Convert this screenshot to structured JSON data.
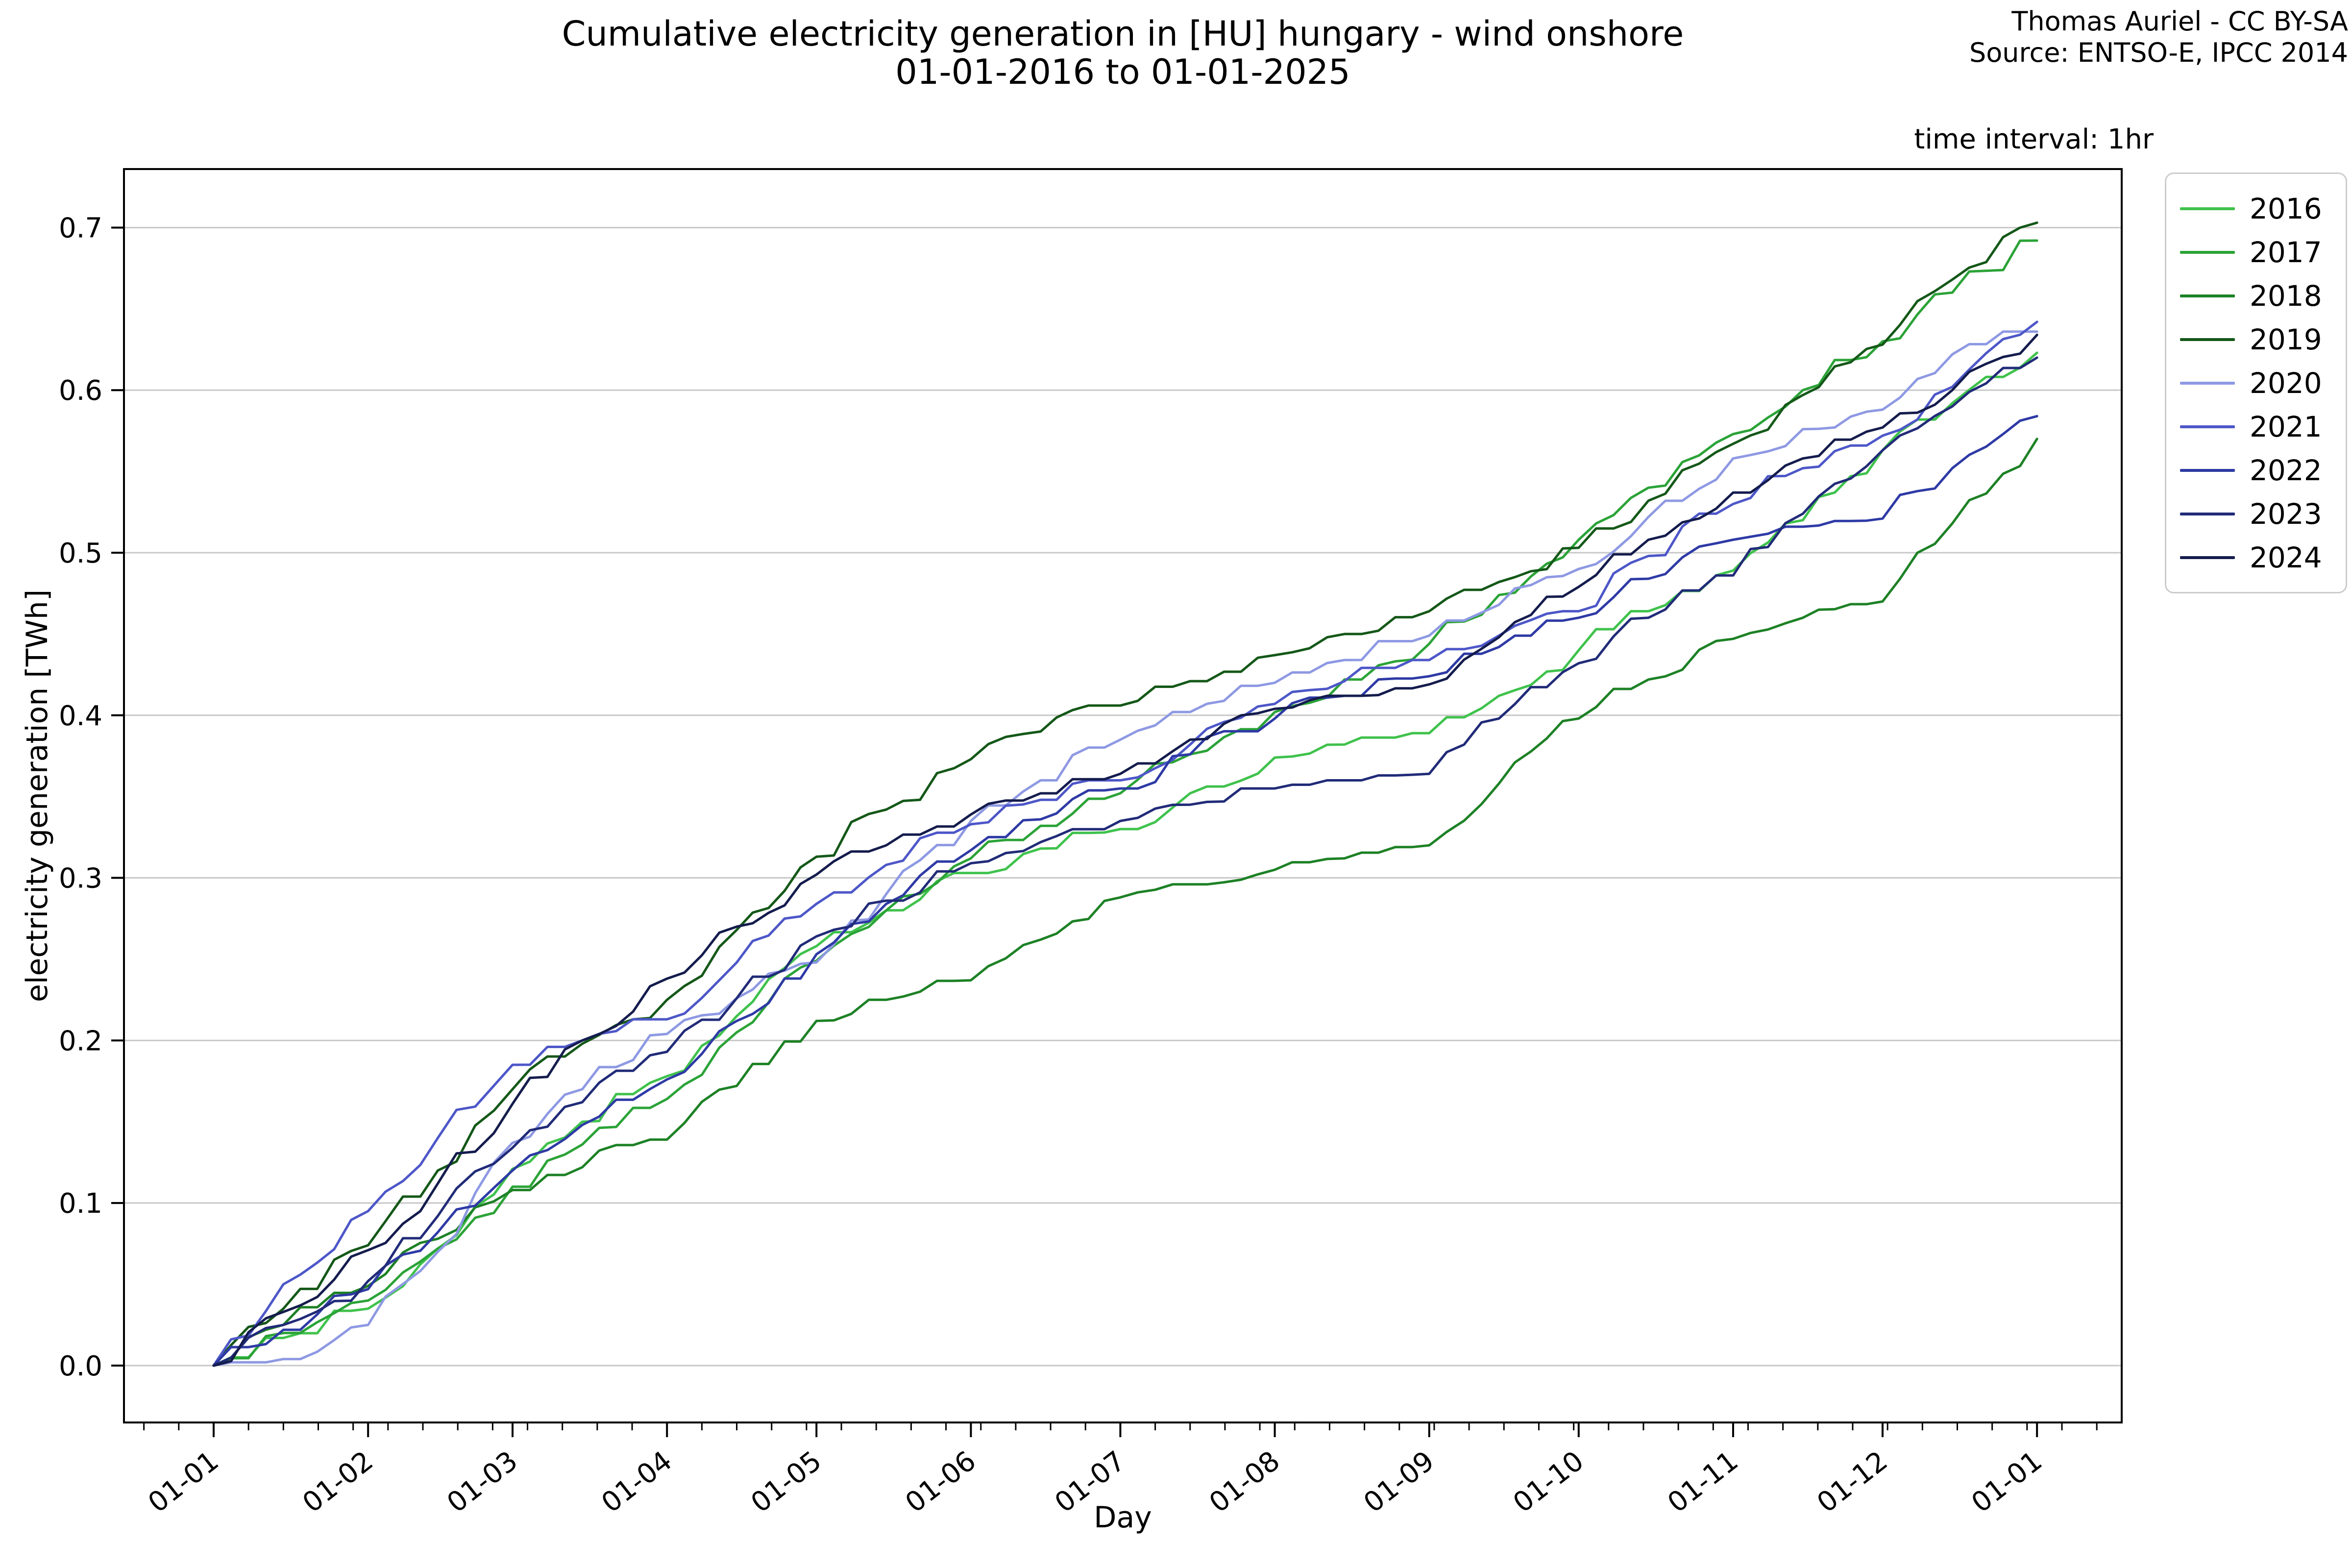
{
  "title": {
    "line1": "Cumulative electricity generation in [HU] hungary - wind onshore",
    "line2": "01-01-2016 to 01-01-2025"
  },
  "attribution": {
    "line1": "Thomas Auriel - CC BY-SA",
    "line2": "Source: ENTSO-E, IPCC 2014"
  },
  "annotation": "time interval: 1hr",
  "axes": {
    "xlabel": "Day",
    "ylabel": "electricity generation [TWh]",
    "y_tick_labels": [
      "0.0",
      "0.1",
      "0.2",
      "0.3",
      "0.4",
      "0.5",
      "0.6",
      "0.7"
    ],
    "x_tick_labels": [
      "01-01",
      "01-02",
      "01-03",
      "01-04",
      "01-05",
      "01-06",
      "01-07",
      "01-08",
      "01-09",
      "01-10",
      "01-11",
      "01-12",
      "01-01"
    ]
  },
  "legend": {
    "entries": [
      {
        "label": "2016",
        "color": "#3fc24c"
      },
      {
        "label": "2017",
        "color": "#2ba337"
      },
      {
        "label": "2018",
        "color": "#1d8125"
      },
      {
        "label": "2019",
        "color": "#145818"
      },
      {
        "label": "2020",
        "color": "#8e99e3"
      },
      {
        "label": "2021",
        "color": "#4d57c8"
      },
      {
        "label": "2022",
        "color": "#2e3aa5"
      },
      {
        "label": "2023",
        "color": "#212b78"
      },
      {
        "label": "2024",
        "color": "#141c4d"
      }
    ]
  },
  "chart_data": {
    "type": "line",
    "title": "Cumulative electricity generation in [HU] hungary - wind onshore 01-01-2016 to 01-01-2025",
    "xlabel": "Day",
    "ylabel": "electricity generation [TWh]",
    "grid": "horizontal",
    "legend_position": "upper right, outside axes",
    "xlim_days": [
      -18,
      383
    ],
    "ylim": [
      -0.035,
      0.736
    ],
    "x_tick_days": [
      0,
      31,
      60,
      91,
      121,
      152,
      182,
      213,
      244,
      274,
      305,
      335,
      366
    ],
    "y_ticks": [
      0.0,
      0.1,
      0.2,
      0.3,
      0.4,
      0.5,
      0.6,
      0.7
    ],
    "minor_x_tick_step_days": 7,
    "x_days": [
      0,
      14,
      31,
      45,
      60,
      74,
      91,
      105,
      121,
      135,
      152,
      166,
      182,
      196,
      213,
      227,
      244,
      258,
      274,
      288,
      305,
      319,
      335,
      349,
      366
    ],
    "units": "TWh",
    "series": [
      {
        "name": "2016",
        "color": "#3fc24c",
        "values": [
          0,
          0.017,
          0.035,
          0.072,
          0.121,
          0.15,
          0.178,
          0.215,
          0.258,
          0.28,
          0.303,
          0.318,
          0.33,
          0.352,
          0.374,
          0.382,
          0.389,
          0.412,
          0.44,
          0.464,
          0.489,
          0.52,
          0.563,
          0.592,
          0.623
        ]
      },
      {
        "name": "2017",
        "color": "#2ba337",
        "values": [
          0,
          0.02,
          0.04,
          0.072,
          0.11,
          0.136,
          0.164,
          0.205,
          0.249,
          0.28,
          0.312,
          0.332,
          0.352,
          0.376,
          0.402,
          0.422,
          0.444,
          0.474,
          0.508,
          0.54,
          0.573,
          0.6,
          0.63,
          0.66,
          0.692
        ]
      },
      {
        "name": "2018",
        "color": "#1d8125",
        "values": [
          0,
          0.025,
          0.049,
          0.078,
          0.108,
          0.122,
          0.139,
          0.172,
          0.212,
          0.225,
          0.237,
          0.262,
          0.288,
          0.296,
          0.305,
          0.312,
          0.32,
          0.358,
          0.398,
          0.422,
          0.447,
          0.46,
          0.47,
          0.518,
          0.57
        ]
      },
      {
        "name": "2019",
        "color": "#145818",
        "values": [
          0,
          0.035,
          0.074,
          0.12,
          0.17,
          0.198,
          0.225,
          0.268,
          0.313,
          0.342,
          0.373,
          0.39,
          0.406,
          0.421,
          0.437,
          0.45,
          0.464,
          0.482,
          0.503,
          0.532,
          0.567,
          0.597,
          0.628,
          0.668,
          0.703
        ]
      },
      {
        "name": "2020",
        "color": "#8e99e3",
        "values": [
          0,
          0.004,
          0.025,
          0.07,
          0.137,
          0.17,
          0.204,
          0.226,
          0.248,
          0.29,
          0.335,
          0.36,
          0.385,
          0.402,
          0.42,
          0.434,
          0.449,
          0.468,
          0.49,
          0.522,
          0.558,
          0.576,
          0.588,
          0.622,
          0.636
        ]
      },
      {
        "name": "2021",
        "color": "#4d57c8",
        "values": [
          0,
          0.05,
          0.095,
          0.14,
          0.185,
          0.2,
          0.213,
          0.248,
          0.284,
          0.308,
          0.333,
          0.348,
          0.36,
          0.382,
          0.407,
          0.421,
          0.434,
          0.449,
          0.464,
          0.498,
          0.53,
          0.552,
          0.572,
          0.602,
          0.642
        ]
      },
      {
        "name": "2022",
        "color": "#2e3aa5",
        "values": [
          0,
          0.022,
          0.047,
          0.082,
          0.12,
          0.148,
          0.176,
          0.212,
          0.253,
          0.284,
          0.317,
          0.336,
          0.355,
          0.376,
          0.398,
          0.412,
          0.424,
          0.442,
          0.46,
          0.484,
          0.508,
          0.516,
          0.521,
          0.552,
          0.584
        ]
      },
      {
        "name": "2023",
        "color": "#212b78",
        "values": [
          0,
          0.025,
          0.052,
          0.092,
          0.134,
          0.162,
          0.193,
          0.226,
          0.264,
          0.286,
          0.309,
          0.322,
          0.335,
          0.345,
          0.355,
          0.36,
          0.364,
          0.398,
          0.432,
          0.46,
          0.486,
          0.524,
          0.563,
          0.59,
          0.62
        ]
      },
      {
        "name": "2024",
        "color": "#141c4d",
        "values": [
          0,
          0.033,
          0.071,
          0.112,
          0.161,
          0.2,
          0.238,
          0.27,
          0.302,
          0.32,
          0.339,
          0.352,
          0.364,
          0.385,
          0.404,
          0.412,
          0.419,
          0.448,
          0.479,
          0.508,
          0.537,
          0.558,
          0.577,
          0.6,
          0.634
        ]
      }
    ]
  },
  "style": {
    "grid_color": "#c8c8c8",
    "spine_color": "#000000",
    "tick_color": "#000000",
    "line_width": 5
  }
}
